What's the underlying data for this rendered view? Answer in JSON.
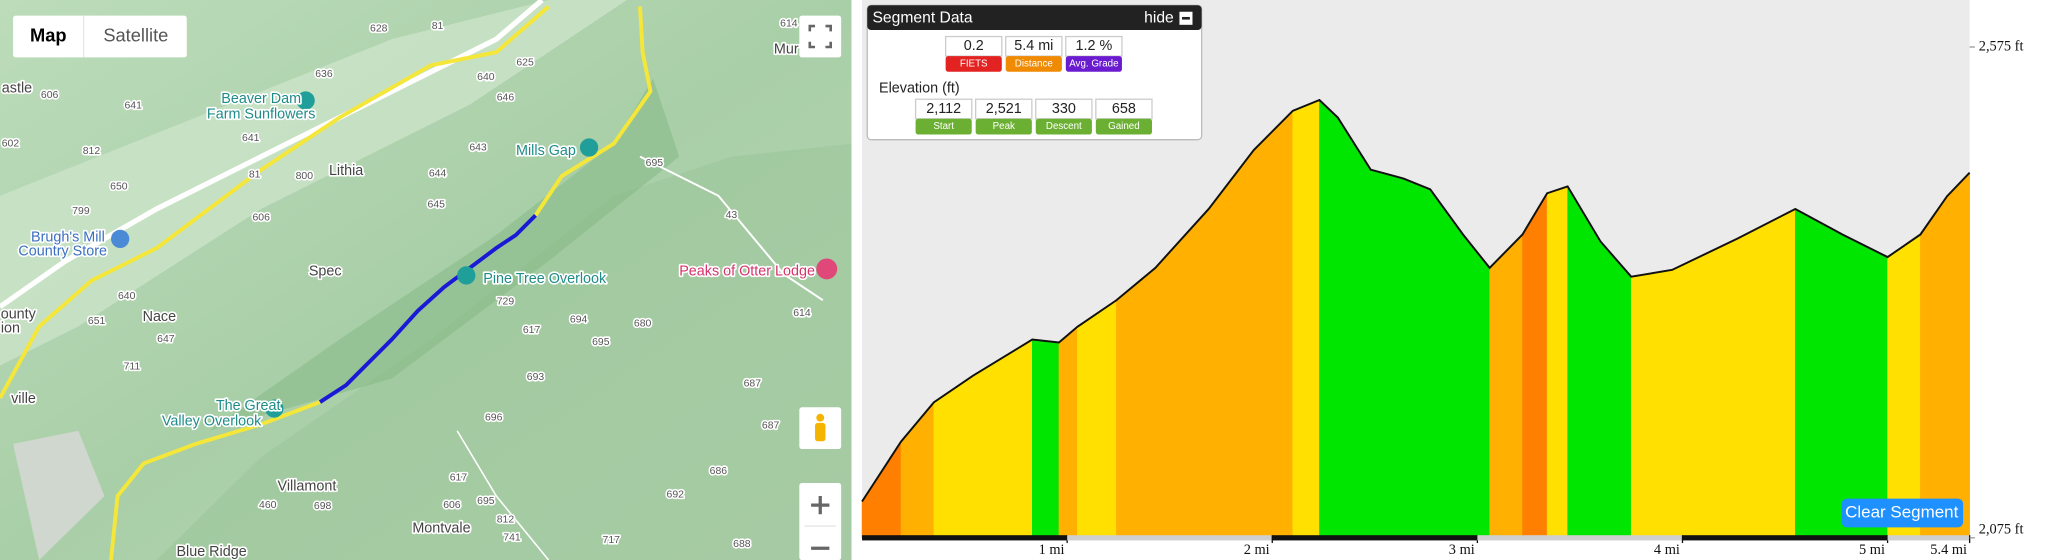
{
  "map": {
    "map_type_buttons": [
      "Map",
      "Satellite"
    ],
    "places": [
      "Beaver Dam",
      "Farm Sunflowers",
      "Mills Gap",
      "Lithia",
      "Brugh's Mill",
      "Country Store",
      "Spec",
      "Pine Tree Overlook",
      "Peaks of Otter Lodge",
      "Nace",
      "The Great",
      "Valley Overlook",
      "Villamont",
      "Montvale",
      "Blue Ridge",
      "astle",
      "ounty",
      "ion",
      "ville",
      "Mur"
    ],
    "routes": [
      "628",
      "81",
      "614",
      "636",
      "625",
      "640",
      "606",
      "646",
      "641",
      "602",
      "812",
      "641",
      "643",
      "800",
      "81",
      "650",
      "644",
      "695",
      "645",
      "799",
      "606",
      "43",
      "640",
      "729",
      "651",
      "694",
      "680",
      "617",
      "614",
      "647",
      "695",
      "711",
      "693",
      "687",
      "696",
      "687",
      "686",
      "617",
      "692",
      "460",
      "698",
      "606",
      "695",
      "812",
      "717",
      "741",
      "688"
    ]
  },
  "segment": {
    "title": "Segment Data",
    "hide": "hide",
    "stats": [
      {
        "value": "0.2",
        "label": "FIETS"
      },
      {
        "value": "5.4 mi",
        "label": "Distance"
      },
      {
        "value": "1.2 %",
        "label": "Avg. Grade"
      }
    ],
    "elevation_title": "Elevation (ft)",
    "elevation": [
      {
        "value": "2,112",
        "label": "Start"
      },
      {
        "value": "2,521",
        "label": "Peak"
      },
      {
        "value": "330",
        "label": "Descent"
      },
      {
        "value": "658",
        "label": "Gained"
      }
    ],
    "clear_button": "Clear Segment"
  },
  "chart_data": {
    "type": "area",
    "x": [
      0,
      0.19,
      0.35,
      0.54,
      0.83,
      0.96,
      1.05,
      1.24,
      1.43,
      1.69,
      1.91,
      2.1,
      2.23,
      2.32,
      2.48,
      2.64,
      2.77,
      2.93,
      3.06,
      3.22,
      3.34,
      3.44,
      3.6,
      3.75,
      3.95,
      4.27,
      4.55,
      4.78,
      5.0,
      5.16,
      5.29,
      5.4
    ],
    "values": [
      2112,
      2173,
      2213,
      2240,
      2277,
      2274,
      2290,
      2317,
      2350,
      2410,
      2470,
      2510,
      2521,
      2503,
      2450,
      2441,
      2430,
      2384,
      2350,
      2384,
      2426,
      2433,
      2377,
      2341,
      2348,
      2380,
      2410,
      2384,
      2361,
      2384,
      2423,
      2447
    ],
    "xlim": [
      0,
      5.4
    ],
    "xticks": [
      {
        "value": 1,
        "label": "1 mi"
      },
      {
        "value": 2,
        "label": "2 mi"
      },
      {
        "value": 3,
        "label": "3 mi"
      },
      {
        "value": 4,
        "label": "4 mi"
      },
      {
        "value": 5,
        "label": "5 mi"
      },
      {
        "value": 5.4,
        "label": "5.4 mi"
      }
    ],
    "ylim": [
      2075,
      2575
    ],
    "yticks": [
      {
        "value": 2575,
        "label": "2,575 ft"
      },
      {
        "value": 2075,
        "label": "2,075 ft"
      }
    ],
    "colors": [
      "#00e600",
      "#ffe000",
      "#ffb000",
      "#ff7f00",
      "#ff4d00"
    ]
  }
}
